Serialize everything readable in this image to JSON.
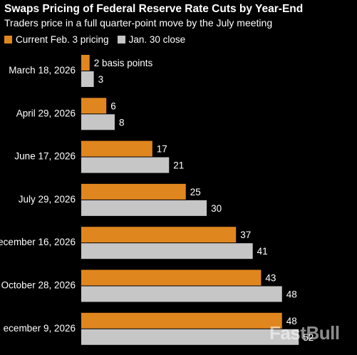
{
  "colors": {
    "current": "#e0861f",
    "previous": "#c6c6c6",
    "background": "#000000",
    "text": "#ffffff",
    "value_text": "#ffffff"
  },
  "watermark": "FastBull",
  "chart_data": {
    "type": "bar",
    "orientation": "horizontal",
    "title": "Swaps Pricing of Federal Reserve Rate Cuts by Year-End",
    "subtitle": "Traders price in a full quarter-point move by the July meeting",
    "categories": [
      "March 18, 2026",
      "April 29, 2026",
      "June 17, 2026",
      "July 29, 2026",
      "ecember 16, 2026",
      "October 28, 2026",
      "ecember 9, 2026"
    ],
    "series": [
      {
        "name": "Current Feb. 3 pricing",
        "values": [
          2,
          6,
          17,
          25,
          37,
          43,
          48
        ],
        "labels": [
          "2 basis points",
          "6",
          "17",
          "25",
          "37",
          "43",
          "48"
        ]
      },
      {
        "name": "Jan. 30 close",
        "values": [
          3,
          8,
          21,
          30,
          41,
          48,
          52
        ],
        "labels": [
          "3",
          "8",
          "21",
          "30",
          "41",
          "48",
          "52"
        ]
      }
    ],
    "xlim": [
      0,
      52
    ],
    "grid": false,
    "legend_position": "top-left"
  }
}
